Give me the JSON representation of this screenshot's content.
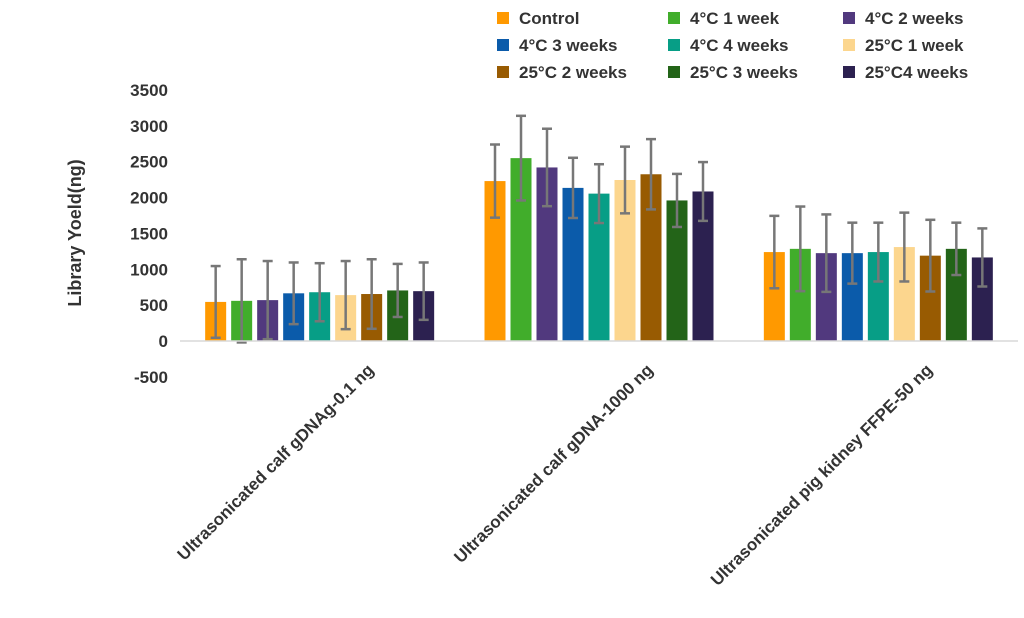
{
  "chart_data": {
    "type": "bar",
    "title": "",
    "xlabel": "",
    "ylabel": "Library Yoeld(ng)",
    "ylim": [
      -500,
      3500
    ],
    "yticks": [
      -500,
      0,
      500,
      1000,
      1500,
      2000,
      2500,
      3000,
      3500
    ],
    "grid": false,
    "legend_placement": "top",
    "categories": [
      "Ultrasonicated calf gDNAg-0.1 ng",
      "Ultrasonicated calf gDNA-1000 ng",
      "Ultrasonicated pig kidney FFPE-50 ng"
    ],
    "series": [
      {
        "name": "Control",
        "color": "#FF9900",
        "values": [
          545,
          2230,
          1240
        ],
        "errors": [
          500,
          510,
          505
        ]
      },
      {
        "name": "4°C 1 week",
        "color": "#41AD2B",
        "values": [
          560,
          2550,
          1285
        ],
        "errors": [
          580,
          590,
          590
        ]
      },
      {
        "name": "4°C 2 weeks",
        "color": "#51397E",
        "values": [
          570,
          2420,
          1225
        ],
        "errors": [
          545,
          540,
          540
        ]
      },
      {
        "name": "4°C 3 weeks",
        "color": "#0B5BAA",
        "values": [
          665,
          2135,
          1225
        ],
        "errors": [
          430,
          420,
          425
        ]
      },
      {
        "name": "4°C 4 weeks",
        "color": "#079E86",
        "values": [
          680,
          2055,
          1240
        ],
        "errors": [
          405,
          410,
          410
        ]
      },
      {
        "name": "25°C 1 week",
        "color": "#FCD68E",
        "values": [
          640,
          2245,
          1310
        ],
        "errors": [
          475,
          465,
          480
        ]
      },
      {
        "name": "25°C 2 weeks",
        "color": "#985B02",
        "values": [
          655,
          2325,
          1190
        ],
        "errors": [
          485,
          490,
          500
        ]
      },
      {
        "name": "25°C 3 weeks",
        "color": "#236418",
        "values": [
          705,
          1960,
          1285
        ],
        "errors": [
          370,
          370,
          365
        ]
      },
      {
        "name": "25°C4 weeks",
        "color": "#2C2150",
        "values": [
          695,
          2085,
          1165
        ],
        "errors": [
          400,
          410,
          405
        ]
      }
    ]
  }
}
